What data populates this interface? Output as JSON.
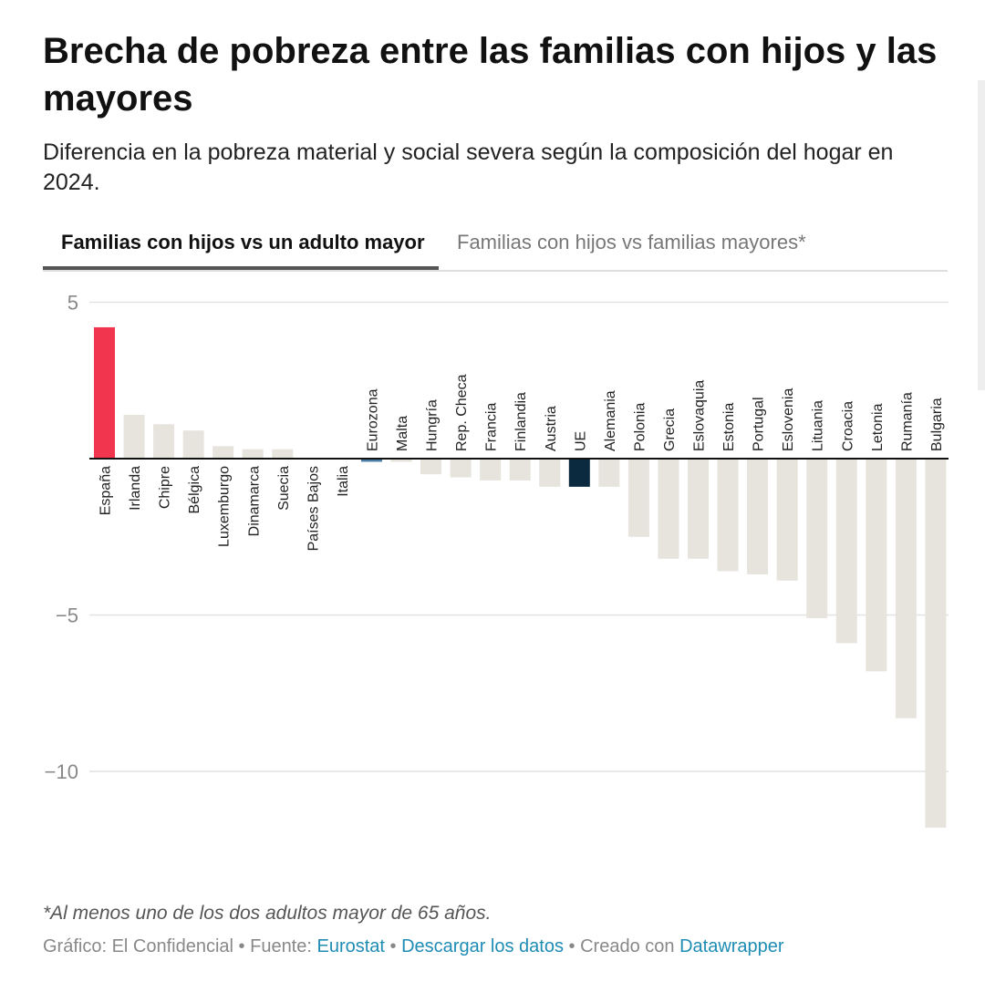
{
  "title": "Brecha de pobreza entre las familias con hijos y las mayores",
  "subtitle": "Diferencia en la pobreza material y social severa según la composición del hogar en 2024.",
  "tabs": [
    {
      "label": "Familias con hijos vs un adulto mayor",
      "active": true
    },
    {
      "label": "Familias con hijos vs familias mayores*",
      "active": false
    }
  ],
  "footnote": "*Al menos uno de los dos adultos mayor de 65 años.",
  "credits": {
    "prefix": "Gráfico: El Confidencial • Fuente:",
    "source_link": "Eurostat",
    "sep1": "•",
    "download_link": "Descargar los datos",
    "sep2": "• Creado con",
    "tool_link": "Datawrapper"
  },
  "chart_data": {
    "type": "bar",
    "title": "",
    "xlabel": "",
    "ylabel": "",
    "ylim": [
      -12,
      5
    ],
    "yticks": [
      5,
      -5,
      -10
    ],
    "ytick_labels": [
      "5",
      "−5",
      "−10"
    ],
    "grid": true,
    "categories": [
      "España",
      "Irlanda",
      "Chipre",
      "Bélgica",
      "Luxemburgo",
      "Dinamarca",
      "Suecia",
      "Países Bajos",
      "Italia",
      "Eurozona",
      "Malta",
      "Hungría",
      "Rep. Checa",
      "Francia",
      "Finlandia",
      "Austria",
      "UE",
      "Alemania",
      "Polonia",
      "Grecia",
      "Eslovaquia",
      "Estonia",
      "Portugal",
      "Eslovenia",
      "Lituania",
      "Croacia",
      "Letonia",
      "Rumanía",
      "Bulgaria"
    ],
    "values": [
      4.2,
      1.4,
      1.1,
      0.9,
      0.4,
      0.3,
      0.3,
      0.0,
      0.0,
      -0.1,
      -0.1,
      -0.5,
      -0.6,
      -0.7,
      -0.7,
      -0.9,
      -0.9,
      -0.9,
      -2.5,
      -3.2,
      -3.2,
      -3.6,
      -3.7,
      -3.9,
      -5.1,
      -5.9,
      -6.8,
      -8.3,
      -11.8
    ],
    "colors": {
      "default": "#e6e4dd",
      "España": "#f1354f",
      "Eurozona": "#4a7ea8",
      "UE": "#0b2a40",
      "axis": "#111111",
      "grid": "#e2e2e2",
      "tick": "#888888"
    }
  }
}
